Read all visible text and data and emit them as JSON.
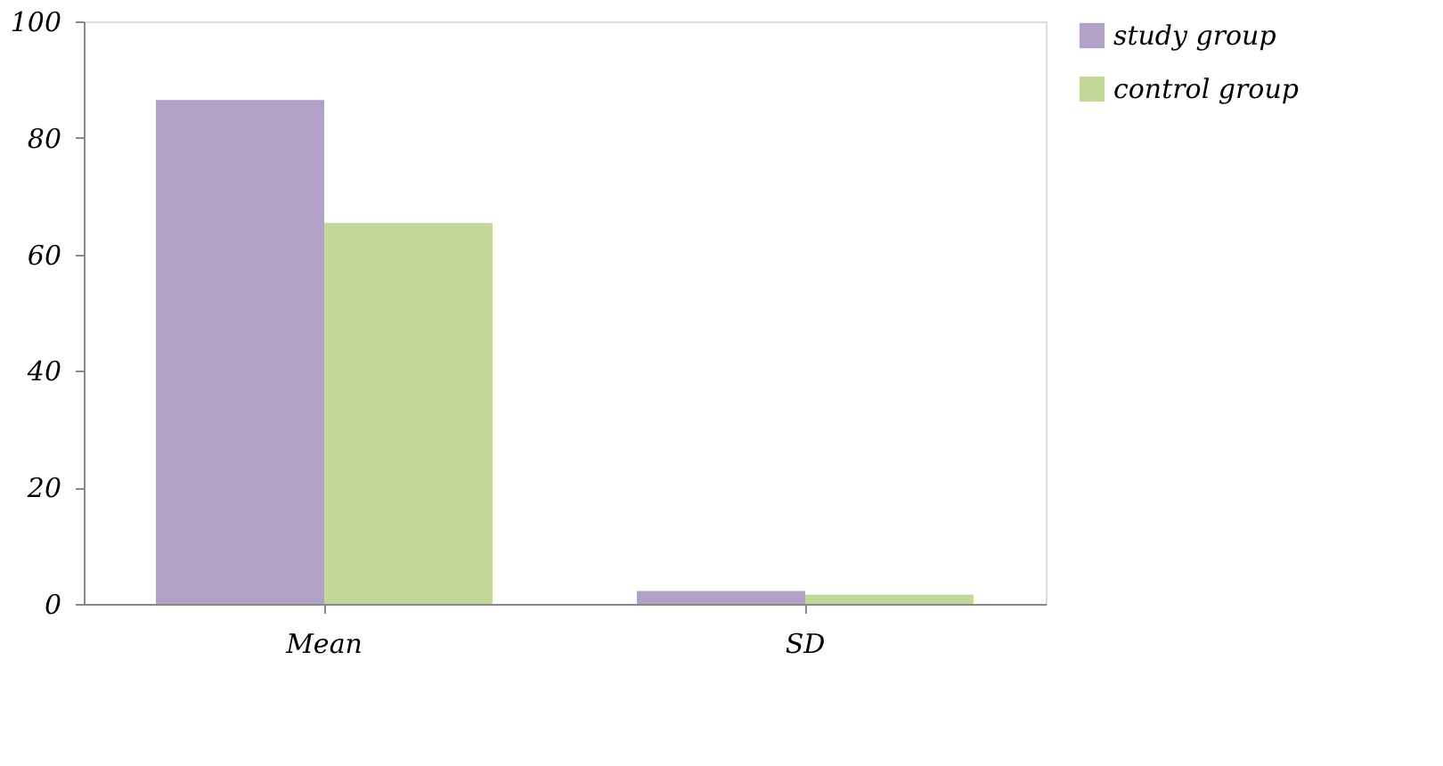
{
  "chart_data": {
    "type": "bar",
    "categories": [
      "Mean",
      "SD"
    ],
    "series": [
      {
        "name": "study group",
        "color": "#b3a2c7",
        "values": [
          86.5,
          2.2
        ]
      },
      {
        "name": "control group",
        "color": "#c4d79b",
        "values": [
          65.4,
          1.6
        ]
      }
    ],
    "ylim": [
      0,
      100
    ],
    "yticks": [
      0,
      20,
      40,
      60,
      80,
      100
    ],
    "grid": false,
    "legend": "right"
  }
}
